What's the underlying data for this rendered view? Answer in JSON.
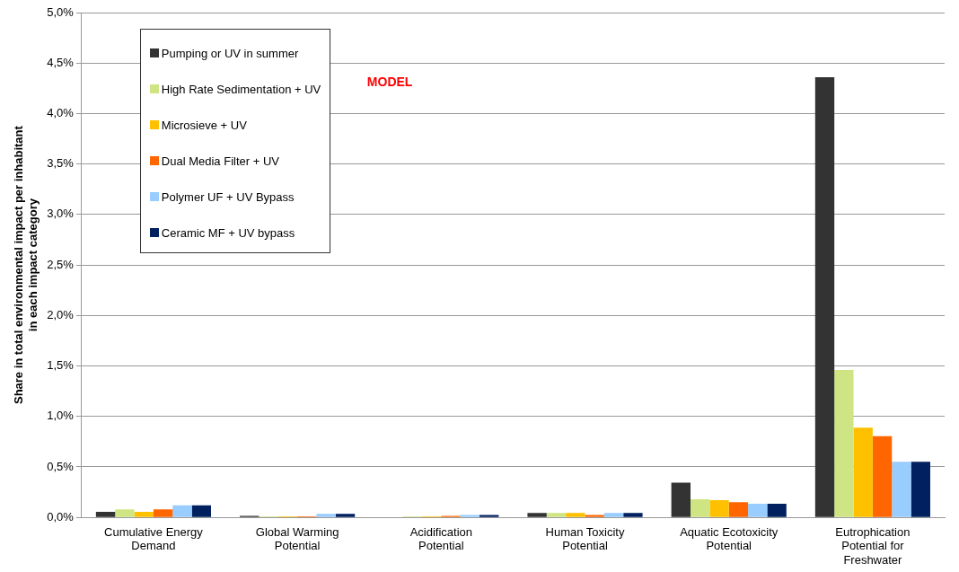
{
  "chart_data": {
    "type": "bar",
    "ylabel": "Share in total environmental impact per inhabitant in each impact category",
    "categories": [
      "Cumulative Energy Demand",
      "Global Warming Potential",
      "Acidification Potential",
      "Human Toxicity Potential",
      "Aquatic Ecotoxicity Potential",
      "Eutrophication Potential for Freshwater"
    ],
    "series": [
      {
        "name": "Pumping or UV in summer",
        "color": "#333333",
        "values": [
          0.056,
          0.015,
          0.003,
          0.045,
          0.345,
          4.36
        ]
      },
      {
        "name": "High Rate Sedimentation + UV",
        "color": "#cfe584",
        "values": [
          0.08,
          0.01,
          0.01,
          0.045,
          0.18,
          1.46
        ]
      },
      {
        "name": "Microsieve + UV",
        "color": "#ffc000",
        "values": [
          0.056,
          0.01,
          0.01,
          0.045,
          0.17,
          0.89
        ]
      },
      {
        "name": "Dual Media Filter + UV",
        "color": "#ff6600",
        "values": [
          0.08,
          0.01,
          0.015,
          0.025,
          0.15,
          0.805
        ]
      },
      {
        "name": "Polymer UF + UV Bypass",
        "color": "#99ccff",
        "values": [
          0.12,
          0.035,
          0.025,
          0.045,
          0.135,
          0.55
        ]
      },
      {
        "name": "Ceramic MF + UV bypass",
        "color": "#002060",
        "values": [
          0.12,
          0.035,
          0.025,
          0.045,
          0.135,
          0.55
        ]
      }
    ],
    "ylim": [
      0,
      5
    ],
    "yticks": [
      {
        "value": 0,
        "label": "0,0%"
      },
      {
        "value": 0.5,
        "label": "0,5%"
      },
      {
        "value": 1,
        "label": "1,0%"
      },
      {
        "value": 1.5,
        "label": "1,5%"
      },
      {
        "value": 2,
        "label": "2,0%"
      },
      {
        "value": 2.5,
        "label": "2,5%"
      },
      {
        "value": 3,
        "label": "3,0%"
      },
      {
        "value": 3.5,
        "label": "3,5%"
      },
      {
        "value": 4,
        "label": "4,0%"
      },
      {
        "value": 4.5,
        "label": "4,5%"
      },
      {
        "value": 5,
        "label": "5,0%"
      }
    ],
    "grid": "y",
    "legend": "top left",
    "annotations": [
      "MODEL"
    ]
  }
}
